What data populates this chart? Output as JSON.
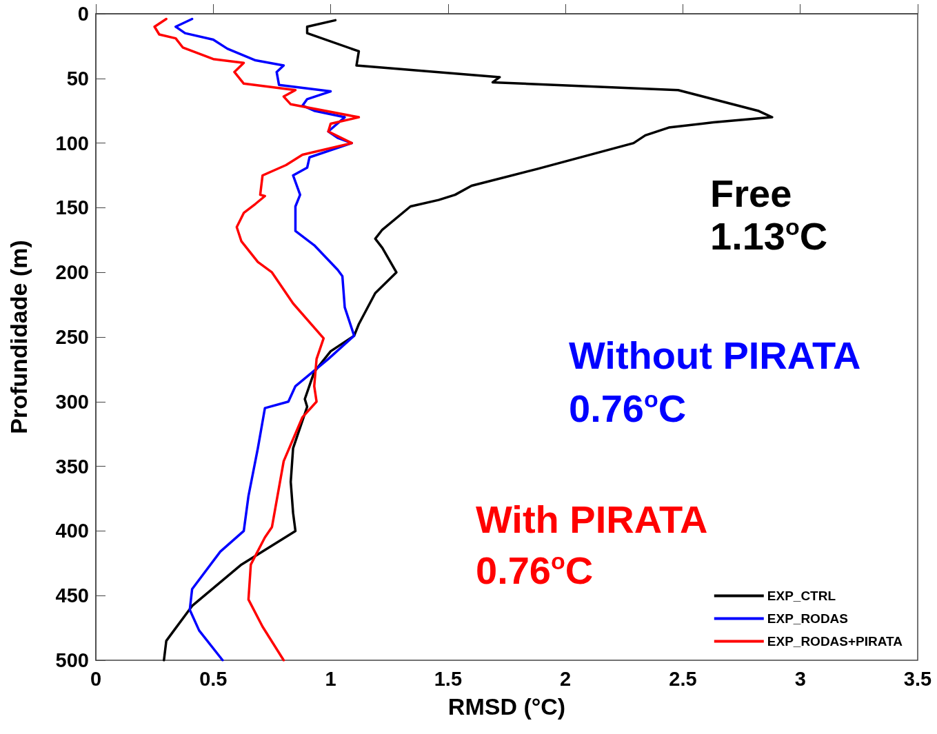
{
  "chart_data": {
    "type": "line",
    "xlabel": "RMSD (°C)",
    "ylabel": "Profundidade (m)",
    "xlim": [
      0,
      3.5
    ],
    "xticks": [
      0,
      0.5,
      1,
      1.5,
      2,
      2.5,
      3,
      3.5
    ],
    "ylim": [
      500,
      0
    ],
    "yticks": [
      0,
      50,
      100,
      150,
      200,
      250,
      300,
      350,
      400,
      450,
      500
    ],
    "grid": false,
    "legend": "bottom right",
    "marker": "none",
    "line_style": "solid",
    "annotations": [
      "Free",
      "1.13$^{o}$C",
      "Without PIRATA",
      "0.76$^{o}$C",
      "With PIRATA",
      "0.76$^{o}$C"
    ],
    "series": [
      {
        "name": "EXP_CTRL",
        "color": "#000000",
        "x": [
          1.02,
          0.9,
          0.9,
          1.12,
          1.11,
          1.72,
          1.69,
          2.48,
          2.82,
          2.88,
          2.63,
          2.44,
          2.34,
          2.29,
          1.88,
          1.6,
          1.53,
          1.46,
          1.34,
          1.22,
          1.19,
          1.22,
          1.28,
          1.19,
          1.12,
          1.1,
          1.0,
          0.93,
          0.89,
          0.9,
          0.84,
          0.83,
          0.84,
          0.85,
          0.62,
          0.41,
          0.3,
          0.29
        ],
        "values": [
          5,
          10,
          15,
          29,
          40,
          49,
          53,
          59,
          75,
          80,
          84,
          88,
          94,
          100,
          120,
          133,
          140,
          144,
          149,
          167,
          174,
          181,
          200,
          216,
          240,
          249,
          261,
          277,
          298,
          304,
          336,
          362,
          386,
          400,
          426,
          458,
          485,
          500
        ]
      },
      {
        "name": "EXP_RODAS",
        "color": "#0000ff",
        "x": [
          0.41,
          0.34,
          0.38,
          0.5,
          0.56,
          0.68,
          0.8,
          0.77,
          0.78,
          1.0,
          0.9,
          0.88,
          0.93,
          1.06,
          0.99,
          1.03,
          1.09,
          0.91,
          0.9,
          0.84,
          0.87,
          0.85,
          0.85,
          0.93,
          1.03,
          1.05,
          1.06,
          1.1,
          0.99,
          0.85,
          0.82,
          0.72,
          0.69,
          0.65,
          0.63,
          0.53,
          0.41,
          0.4,
          0.44,
          0.54
        ],
        "values": [
          4,
          10,
          15,
          20,
          27,
          36,
          40,
          45,
          55,
          60,
          66,
          71,
          75,
          80,
          91,
          96,
          100,
          111,
          119,
          125,
          140,
          149,
          168,
          179,
          198,
          203,
          227,
          249,
          267,
          288,
          300,
          305,
          336,
          373,
          400,
          416,
          445,
          461,
          477,
          500
        ]
      },
      {
        "name": "EXP_RODAS+PIRATA",
        "color": "#ff0000",
        "x": [
          0.3,
          0.25,
          0.27,
          0.34,
          0.37,
          0.5,
          0.63,
          0.59,
          0.63,
          0.85,
          0.8,
          0.83,
          1.12,
          1.0,
          0.99,
          1.09,
          0.88,
          0.81,
          0.71,
          0.7,
          0.72,
          0.68,
          0.63,
          0.6,
          0.62,
          0.69,
          0.75,
          0.84,
          0.97,
          0.94,
          0.93,
          0.94,
          0.88,
          0.8,
          0.75,
          0.72,
          0.66,
          0.65,
          0.71,
          0.8
        ],
        "values": [
          4,
          10,
          16,
          19,
          26,
          35,
          38,
          45,
          54,
          59,
          64,
          70,
          80,
          85,
          91,
          100,
          109,
          117,
          125,
          140,
          141,
          147,
          154,
          165,
          176,
          192,
          200,
          224,
          251,
          267,
          288,
          300,
          312,
          346,
          397,
          405,
          426,
          453,
          474,
          500
        ]
      }
    ]
  }
}
